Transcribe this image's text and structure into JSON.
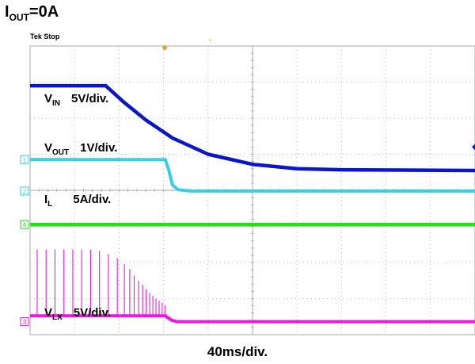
{
  "heading": {
    "main": "I",
    "sub": "OUT",
    "tail": "=0A"
  },
  "scope_status": "Tek Stop",
  "time_scale": "40ms/div.",
  "colors": {
    "vin": "#0a17c8",
    "vout": "#36cfe6",
    "il": "#22e01a",
    "vlx": "#ec18e0",
    "grid": "#a9a9a9",
    "trigger": "#e8a23a"
  },
  "channels": [
    {
      "key": "vin",
      "main": "V",
      "sub": "IN",
      "scale": "5V/div."
    },
    {
      "key": "vout",
      "main": "V",
      "sub": "OUT",
      "scale": "1V/div."
    },
    {
      "key": "il",
      "main": "I",
      "sub": "L",
      "scale": "5A/div."
    },
    {
      "key": "vlx",
      "main": "V",
      "sub": "LX",
      "scale": "5V/div."
    }
  ],
  "markers": {
    "ch1": "1",
    "ch2": "2",
    "ch3": "3",
    "ch4": "4"
  },
  "chart_data": {
    "type": "line",
    "x_unit": "div",
    "y_unit": "div",
    "x_range": [
      0,
      10
    ],
    "y_range": [
      0,
      8
    ],
    "grid": true,
    "series": [
      {
        "name": "VIN",
        "points": [
          [
            0,
            6.9
          ],
          [
            1.7,
            6.9
          ],
          [
            2.1,
            6.45
          ],
          [
            2.6,
            5.95
          ],
          [
            3.2,
            5.45
          ],
          [
            4.0,
            5.0
          ],
          [
            5.0,
            4.72
          ],
          [
            6.0,
            4.6
          ],
          [
            7.0,
            4.57
          ],
          [
            10,
            4.55
          ]
        ]
      },
      {
        "name": "VOUT",
        "points": [
          [
            0,
            4.85
          ],
          [
            3.04,
            4.85
          ],
          [
            3.12,
            4.55
          ],
          [
            3.2,
            4.15
          ],
          [
            3.32,
            4.02
          ],
          [
            3.6,
            3.98
          ],
          [
            10,
            3.98
          ]
        ]
      },
      {
        "name": "IL",
        "points": [
          [
            0,
            3.05
          ],
          [
            10,
            3.05
          ]
        ]
      },
      {
        "name": "VLX",
        "points": [
          [
            0,
            0.52
          ],
          [
            3.04,
            0.52
          ],
          [
            3.18,
            0.4
          ],
          [
            3.3,
            0.36
          ],
          [
            10,
            0.36
          ]
        ],
        "pulses": [
          [
            0.16,
            2.36
          ],
          [
            0.36,
            2.36
          ],
          [
            0.56,
            2.36
          ],
          [
            0.76,
            2.36
          ],
          [
            0.96,
            2.36
          ],
          [
            1.16,
            2.36
          ],
          [
            1.36,
            2.36
          ],
          [
            1.56,
            2.32
          ],
          [
            1.76,
            2.24
          ],
          [
            1.96,
            2.12
          ],
          [
            2.12,
            1.96
          ],
          [
            2.24,
            1.82
          ],
          [
            2.34,
            1.64
          ],
          [
            2.44,
            1.5
          ],
          [
            2.53,
            1.38
          ],
          [
            2.61,
            1.26
          ],
          [
            2.69,
            1.16
          ],
          [
            2.76,
            1.08
          ],
          [
            2.83,
            1.0
          ],
          [
            2.9,
            0.94
          ],
          [
            2.97,
            0.88
          ],
          [
            3.03,
            0.82
          ]
        ]
      }
    ]
  }
}
